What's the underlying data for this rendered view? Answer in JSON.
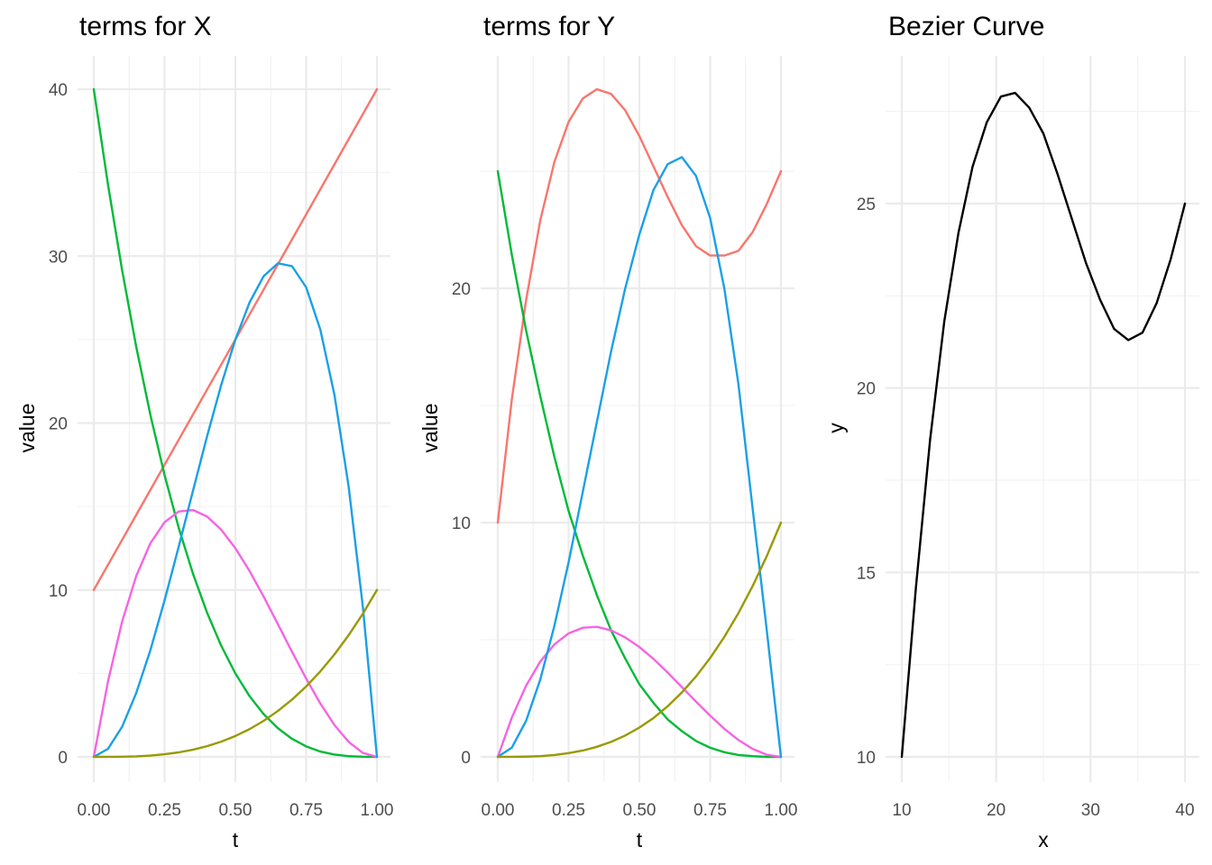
{
  "chart_data": [
    {
      "type": "line",
      "title": "terms for X",
      "xlabel": "t",
      "ylabel": "value",
      "xlim": [
        0,
        1
      ],
      "ylim": [
        0,
        40
      ],
      "x_ticks": [
        0,
        0.25,
        0.5,
        0.75,
        1
      ],
      "x_tick_labels": [
        "0.00",
        "0.25",
        "0.50",
        "0.75",
        "1.00"
      ],
      "y_ticks": [
        0,
        10,
        20,
        30,
        40
      ],
      "y_tick_labels": [
        "0",
        "10",
        "20",
        "30",
        "40"
      ],
      "grid": true,
      "x": [
        0,
        0.05,
        0.1,
        0.15,
        0.2,
        0.25,
        0.3,
        0.35,
        0.4,
        0.45,
        0.5,
        0.55,
        0.6,
        0.65,
        0.7,
        0.75,
        0.8,
        0.85,
        0.9,
        0.95,
        1
      ],
      "series": [
        {
          "color": "#F8766D",
          "values": [
            10,
            11.5,
            13,
            14.5,
            16,
            17.5,
            19,
            20.5,
            22,
            23.5,
            25,
            26.5,
            28,
            29.5,
            31,
            32.5,
            34,
            35.5,
            37,
            38.5,
            40
          ]
        },
        {
          "color": "#00BA38",
          "values": [
            40,
            34.3,
            29.16,
            24.56,
            20.48,
            16.88,
            13.72,
            10.99,
            8.64,
            6.66,
            5,
            3.64,
            2.56,
            1.72,
            1.08,
            0.63,
            0.32,
            0.14,
            0.04,
            0.01,
            0
          ]
        },
        {
          "color": "#F564E3",
          "values": [
            0,
            4.51,
            8.1,
            10.84,
            12.8,
            14.06,
            14.7,
            14.79,
            14.4,
            13.61,
            12.5,
            11.14,
            9.6,
            7.96,
            6.3,
            4.69,
            3.2,
            1.91,
            0.9,
            0.24,
            0
          ]
        },
        {
          "color": "#1AA0E6",
          "values": [
            0,
            0.48,
            1.8,
            3.83,
            6.4,
            9.38,
            12.6,
            15.92,
            19.2,
            22.28,
            25,
            27.22,
            28.8,
            29.57,
            29.4,
            28.13,
            25.6,
            21.68,
            16.2,
            9.03,
            0
          ]
        },
        {
          "color": "#999900",
          "values": [
            0,
            0.001,
            0.01,
            0.03,
            0.08,
            0.16,
            0.27,
            0.43,
            0.64,
            0.91,
            1.25,
            1.66,
            2.16,
            2.75,
            3.43,
            4.22,
            5.12,
            6.14,
            7.29,
            8.57,
            10
          ]
        }
      ]
    },
    {
      "type": "line",
      "title": "terms for Y",
      "xlabel": "t",
      "ylabel": "value",
      "xlim": [
        0,
        1
      ],
      "ylim": [
        0,
        28.5
      ],
      "x_ticks": [
        0,
        0.25,
        0.5,
        0.75,
        1
      ],
      "x_tick_labels": [
        "0.00",
        "0.25",
        "0.50",
        "0.75",
        "1.00"
      ],
      "y_ticks": [
        0,
        10,
        20
      ],
      "y_tick_labels": [
        "0",
        "10",
        "20"
      ],
      "grid": true,
      "x": [
        0,
        0.05,
        0.1,
        0.15,
        0.2,
        0.25,
        0.3,
        0.35,
        0.4,
        0.45,
        0.5,
        0.55,
        0.6,
        0.65,
        0.7,
        0.75,
        0.8,
        0.85,
        0.9,
        0.95,
        1
      ],
      "series": [
        {
          "color": "#F8766D",
          "values": [
            10,
            15.3,
            19.5,
            22.9,
            25.4,
            27.1,
            28.1,
            28.5,
            28.3,
            27.6,
            26.5,
            25.2,
            23.9,
            22.7,
            21.8,
            21.4,
            21.4,
            21.6,
            22.4,
            23.6,
            25
          ]
        },
        {
          "color": "#00BA38",
          "values": [
            25,
            21.4,
            18.2,
            15.4,
            12.8,
            10.5,
            8.6,
            6.9,
            5.4,
            4.2,
            3.1,
            2.3,
            1.6,
            1.1,
            0.68,
            0.39,
            0.2,
            0.08,
            0.03,
            0,
            0
          ]
        },
        {
          "color": "#F564E3",
          "values": [
            0,
            1.69,
            3.04,
            4.07,
            4.8,
            5.27,
            5.51,
            5.55,
            5.4,
            5.1,
            4.69,
            4.18,
            3.6,
            2.98,
            2.36,
            1.76,
            1.2,
            0.72,
            0.34,
            0.09,
            0
          ]
        },
        {
          "color": "#1AA0E6",
          "values": [
            0,
            0.4,
            1.54,
            3.3,
            5.6,
            8.3,
            11.3,
            14.3,
            17.3,
            20.0,
            22.3,
            24.2,
            25.3,
            25.6,
            24.8,
            23.0,
            20.0,
            15.9,
            10.6,
            5.4,
            0
          ]
        },
        {
          "color": "#999900",
          "values": [
            0,
            0.001,
            0.01,
            0.03,
            0.08,
            0.16,
            0.27,
            0.43,
            0.64,
            0.91,
            1.25,
            1.66,
            2.16,
            2.75,
            3.43,
            4.22,
            5.12,
            6.14,
            7.29,
            8.57,
            10
          ]
        }
      ]
    },
    {
      "type": "line",
      "title": "Bezier Curve",
      "xlabel": "x",
      "ylabel": "y",
      "xlim": [
        10,
        40
      ],
      "ylim": [
        10,
        28.1
      ],
      "x_ticks": [
        10,
        20,
        30,
        40
      ],
      "x_tick_labels": [
        "10",
        "20",
        "30",
        "40"
      ],
      "y_ticks": [
        10,
        15,
        20,
        25
      ],
      "y_tick_labels": [
        "10",
        "15",
        "20",
        "25"
      ],
      "grid": true,
      "series": [
        {
          "color": "#000000",
          "x": [
            10,
            11.5,
            13,
            14.5,
            16,
            17.5,
            19,
            20.5,
            22,
            23.5,
            25,
            26.5,
            28,
            29.5,
            31,
            32.5,
            34,
            35.5,
            37,
            38.5,
            40
          ],
          "values": [
            10,
            14.6,
            18.6,
            21.8,
            24.2,
            26.0,
            27.2,
            27.9,
            28.0,
            27.6,
            26.9,
            25.8,
            24.6,
            23.4,
            22.4,
            21.6,
            21.3,
            21.5,
            22.3,
            23.5,
            25
          ]
        }
      ]
    }
  ]
}
